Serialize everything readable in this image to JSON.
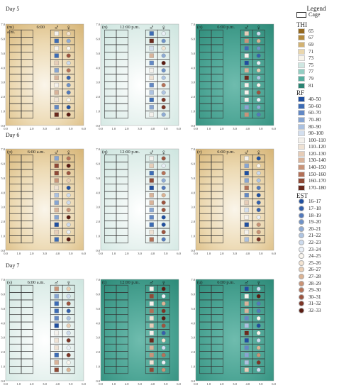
{
  "days": [
    {
      "label": "Day 5",
      "panels": [
        {
          "id": "(m)",
          "time": "6:00",
          "time2": "a.m.",
          "bg": "thi_low"
        },
        {
          "id": "(n)",
          "time": "12:00 p.m.",
          "bg": "thi_mid"
        },
        {
          "id": "(o)",
          "time": "6:00 p.m.",
          "bg": "thi_high"
        }
      ]
    },
    {
      "label": "Day 6",
      "panels": [
        {
          "id": "(p)",
          "time": "6:00 a.m.",
          "bg": "thi_low"
        },
        {
          "id": "(q)",
          "time": "12:00 p.m.",
          "bg": "thi_mid"
        },
        {
          "id": "(r)",
          "time": "6:00 p.m.",
          "bg": "thi_low"
        }
      ]
    },
    {
      "label": "Day 7",
      "panels": [
        {
          "id": "(s)",
          "time": "6:00 a.m.",
          "bg": "thi_mid"
        },
        {
          "id": "(t)",
          "time": "12:00 p.m.",
          "bg": "thi_high"
        },
        {
          "id": "(u)",
          "time": "6:00 p.m.",
          "bg": "thi_high"
        }
      ]
    }
  ],
  "symbols": {
    "male": "♂",
    "female": "♀"
  },
  "chart_data": {
    "type": "heatmap",
    "x_ticks": [
      "0.0",
      "1.0",
      "2.0",
      "3.0",
      "4.0",
      "5.0",
      "6.0"
    ],
    "y_ticks": [
      "0.0",
      "1.0",
      "2.0",
      "3.0",
      "4.0",
      "5.0",
      "6.0",
      "7.0"
    ],
    "xlim": [
      0,
      6
    ],
    "ylim": [
      0,
      7
    ]
  },
  "legend": {
    "title": "Legend",
    "cage": "Cage",
    "thi": {
      "title": "THI",
      "items": [
        {
          "label": "65",
          "color": "#94681f"
        },
        {
          "label": "67",
          "color": "#b48a3e"
        },
        {
          "label": "69",
          "color": "#d2b273"
        },
        {
          "label": "71",
          "color": "#ead7ad"
        },
        {
          "label": "73",
          "color": "#f8f4ea"
        },
        {
          "label": "75",
          "color": "#cfe7e2"
        },
        {
          "label": "77",
          "color": "#93cec3"
        },
        {
          "label": "79",
          "color": "#55ae9f"
        },
        {
          "label": "81",
          "color": "#2b8473"
        }
      ]
    },
    "rf": {
      "title": "RF",
      "items": [
        {
          "label": "40–50",
          "color": "#1f4fa0"
        },
        {
          "label": "50–60",
          "color": "#3c6cb5"
        },
        {
          "label": "60–70",
          "color": "#6288c4"
        },
        {
          "label": "70–80",
          "color": "#87a5d2"
        },
        {
          "label": "80–90",
          "color": "#abc1e0"
        },
        {
          "label": "90–100",
          "color": "#d3dfef"
        },
        {
          "label": "100–110",
          "color": "#f4f1ec"
        },
        {
          "label": "110–120",
          "color": "#efe2d4"
        },
        {
          "label": "120–130",
          "color": "#e6cdb8"
        },
        {
          "label": "130–140",
          "color": "#d8b39a"
        },
        {
          "label": "140–150",
          "color": "#c89479"
        },
        {
          "label": "150–160",
          "color": "#b27057"
        },
        {
          "label": "160–170",
          "color": "#8f4a36"
        },
        {
          "label": "170–180",
          "color": "#6a2a1d"
        }
      ]
    },
    "est": {
      "title": "EST",
      "items": [
        {
          "label": "16–17",
          "color": "#1f4fa0"
        },
        {
          "label": "17–18",
          "color": "#3461ad"
        },
        {
          "label": "18–19",
          "color": "#5279bb"
        },
        {
          "label": "19–20",
          "color": "#6f92c8"
        },
        {
          "label": "20–21",
          "color": "#8eabd5"
        },
        {
          "label": "21–22",
          "color": "#aec4e2"
        },
        {
          "label": "22–23",
          "color": "#cddbee"
        },
        {
          "label": "23–24",
          "color": "#eaf0f7"
        },
        {
          "label": "24–25",
          "color": "#faf6ef"
        },
        {
          "label": "25–26",
          "color": "#f3e4d2"
        },
        {
          "label": "26–27",
          "color": "#e9ceb4"
        },
        {
          "label": "27–28",
          "color": "#dbb394"
        },
        {
          "label": "28–29",
          "color": "#c99376"
        },
        {
          "label": "29–30",
          "color": "#b57258"
        },
        {
          "label": "30–31",
          "color": "#9c543f"
        },
        {
          "label": "31–32",
          "color": "#7c3526"
        },
        {
          "label": "32–33",
          "color": "#5a1c12"
        }
      ]
    }
  }
}
